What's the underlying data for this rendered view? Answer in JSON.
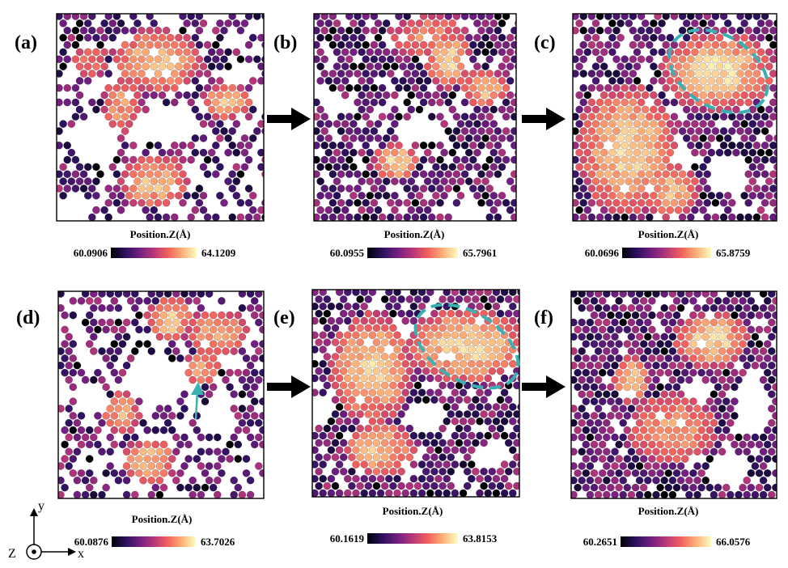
{
  "figure": {
    "colormap": [
      "#000004",
      "#2c115f",
      "#721f81",
      "#b73779",
      "#f1605d",
      "#feb078",
      "#fcfdbf"
    ],
    "highlight_color": "#3ab0b2",
    "arrow_color": "#000000",
    "panels": [
      {
        "label": "(a)",
        "cbar_title": "Position.Z(Å)",
        "cbar_min": "60.0906",
        "cbar_max": "64.1209"
      },
      {
        "label": "(b)",
        "cbar_title": "Position.Z(Å)",
        "cbar_min": "60.0955",
        "cbar_max": "65.7961"
      },
      {
        "label": "(c)",
        "cbar_title": "Position.Z(Å)",
        "cbar_min": "60.0696",
        "cbar_max": "65.8759"
      },
      {
        "label": "(d)",
        "cbar_title": "Position.Z(Å)",
        "cbar_min": "60.0876",
        "cbar_max": "63.7026"
      },
      {
        "label": "(e)",
        "cbar_title": "Position.Z(Å)",
        "cbar_min": "60.1619",
        "cbar_max": "63.8153"
      },
      {
        "label": "(f)",
        "cbar_title": "Position.Z(Å)",
        "cbar_min": "60.2651",
        "cbar_max": "66.0576"
      }
    ],
    "axes": {
      "y": "y",
      "x": "x",
      "z": "Z"
    }
  }
}
